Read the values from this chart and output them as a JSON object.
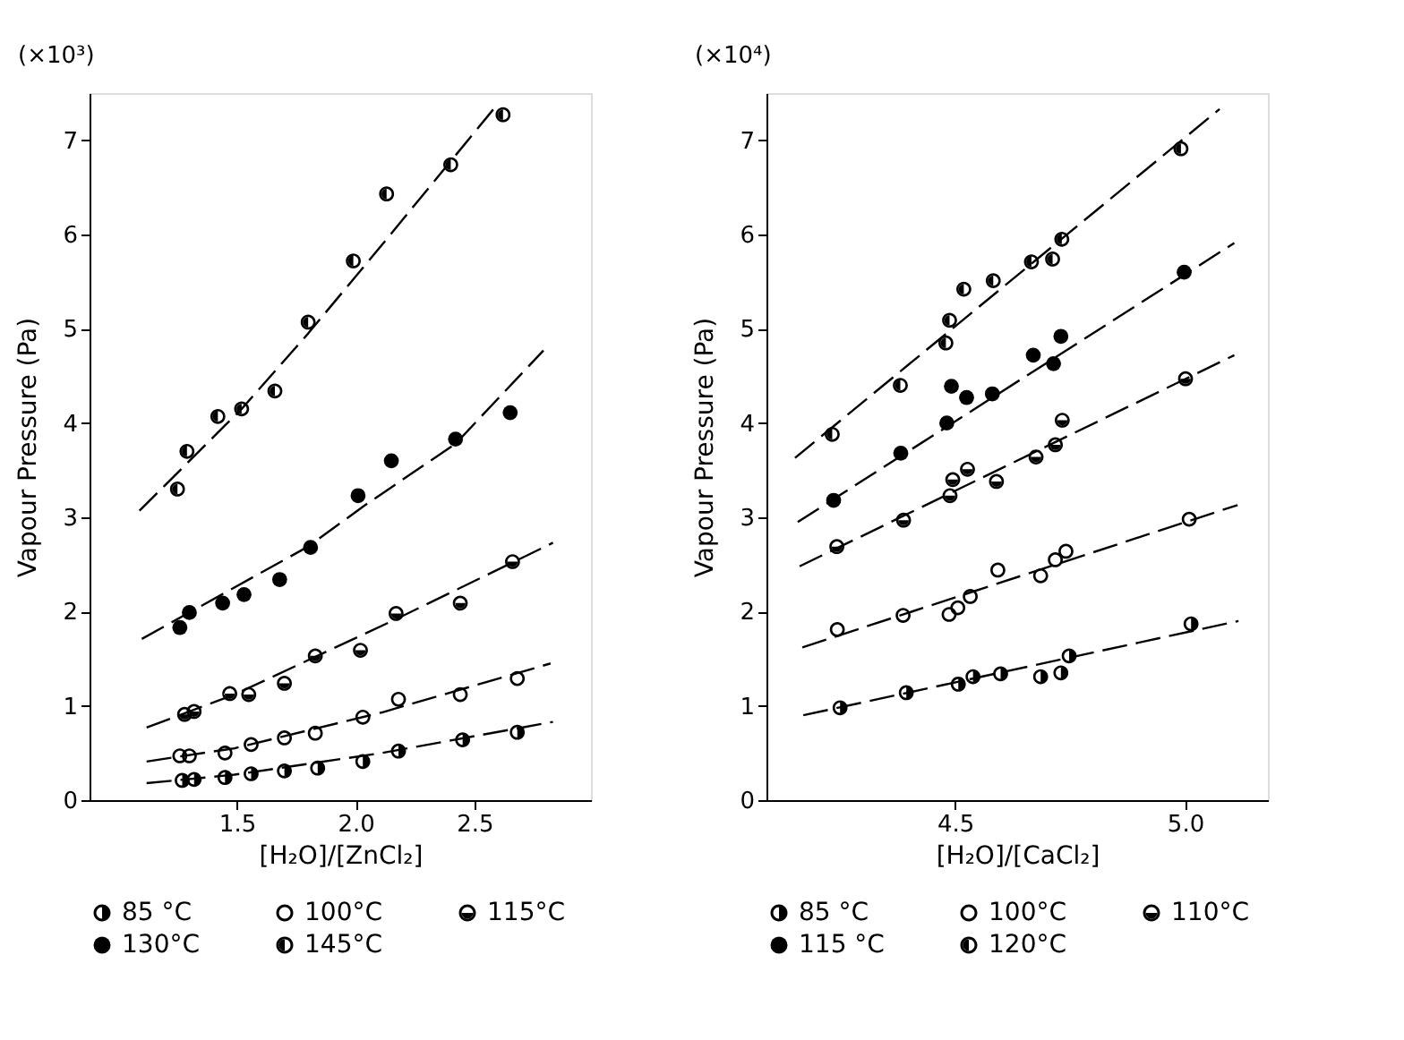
{
  "chart_data": [
    {
      "type": "scatter",
      "xlabel": "[H₂O]/[ZnCl₂]",
      "ylabel": "Vapour Pressure   (Pa)",
      "annotations": [
        "(×10³)"
      ],
      "xlim": [
        0.88,
        2.99
      ],
      "ylim": [
        0,
        7.5
      ],
      "xticks": [
        1.5,
        {
          "value": 2,
          "label": "2.0"
        },
        2.5
      ],
      "yticks": [
        0,
        1,
        2,
        3,
        4,
        5,
        6,
        7
      ],
      "grid": false,
      "legend": "bottom",
      "marker": "circle",
      "line_style": "dashed",
      "series": [
        {
          "name": "85 °C",
          "color": "#000000",
          "x": [
            1.27,
            1.32,
            1.45,
            1.56,
            1.7,
            1.84,
            2.03,
            2.18,
            2.45,
            2.68
          ],
          "values": [
            0.21,
            0.22,
            0.24,
            0.28,
            0.31,
            0.34,
            0.41,
            0.52,
            0.64,
            0.72
          ]
        },
        {
          "name": "100°C",
          "color": "#000000",
          "x": [
            1.26,
            1.3,
            1.45,
            1.56,
            1.7,
            1.83,
            2.03,
            2.18,
            2.44,
            2.68
          ],
          "values": [
            0.47,
            0.47,
            0.5,
            0.59,
            0.66,
            0.71,
            0.88,
            1.07,
            1.12,
            1.29
          ]
        },
        {
          "name": "115°C",
          "color": "#000000",
          "x": [
            1.28,
            1.32,
            1.47,
            1.55,
            1.7,
            1.83,
            2.02,
            2.17,
            2.44,
            2.66
          ],
          "values": [
            0.91,
            0.94,
            1.13,
            1.12,
            1.24,
            1.53,
            1.59,
            1.98,
            2.09,
            2.53
          ]
        },
        {
          "name": "130°C",
          "color": "#000000",
          "x": [
            1.26,
            1.3,
            1.44,
            1.53,
            1.68,
            1.81,
            2.01,
            2.15,
            2.42,
            2.65
          ],
          "values": [
            1.83,
            1.99,
            2.09,
            2.18,
            2.34,
            2.68,
            3.23,
            3.6,
            3.83,
            4.11
          ]
        },
        {
          "name": "145°C",
          "color": "#000000",
          "x": [
            1.25,
            1.29,
            1.42,
            1.52,
            1.66,
            1.8,
            1.99,
            2.13,
            2.4,
            2.62
          ],
          "values": [
            3.3,
            3.7,
            4.07,
            4.15,
            4.34,
            5.07,
            5.72,
            6.43,
            6.74,
            7.27
          ]
        },
        {
          "type": "line",
          "marker": "none",
          "color": "#000000",
          "x": [
            1.12,
            1.49,
            2.11,
            2.83
          ],
          "values": [
            0.18,
            0.27,
            0.5,
            0.83
          ]
        },
        {
          "type": "line",
          "marker": "none",
          "color": "#000000",
          "x": [
            1.12,
            1.49,
            2.11,
            2.82
          ],
          "values": [
            0.41,
            0.55,
            0.93,
            1.45
          ]
        },
        {
          "type": "line",
          "marker": "none",
          "color": "#000000",
          "x": [
            1.12,
            1.49,
            2.17,
            2.83
          ],
          "values": [
            0.77,
            1.12,
            1.92,
            2.73
          ]
        },
        {
          "type": "line",
          "marker": "none",
          "color": "#000000",
          "x": [
            1.1,
            1.8,
            2.04,
            2.42,
            2.79
          ],
          "values": [
            1.71,
            2.69,
            3.13,
            3.78,
            4.77
          ]
        },
        {
          "type": "line",
          "marker": "none",
          "color": "#000000",
          "x": [
            1.09,
            1.52,
            1.8,
            2.13,
            2.58
          ],
          "values": [
            3.07,
            4.15,
            4.95,
            5.95,
            7.33
          ]
        }
      ]
    },
    {
      "type": "scatter",
      "xlabel": "[H₂O]/[CaCl₂]",
      "ylabel": "Vapour Pressure   (Pa)",
      "annotations": [
        "(×10⁴)"
      ],
      "xlim": [
        4.09,
        5.18
      ],
      "ylim": [
        0,
        7.5
      ],
      "xticks": [
        4.5,
        {
          "value": 5,
          "label": "5.0"
        }
      ],
      "yticks": [
        0,
        1,
        2,
        3,
        4,
        5,
        6,
        7
      ],
      "grid": false,
      "legend": "bottom",
      "marker": "circle",
      "line_style": "dashed",
      "series": [
        {
          "name": "85 °C",
          "color": "#000000",
          "x": [
            4.25,
            4.394,
            4.507,
            4.539,
            4.599,
            4.686,
            4.73,
            4.748,
            5.013
          ],
          "values": [
            0.98,
            1.14,
            1.23,
            1.31,
            1.34,
            1.31,
            1.35,
            1.53,
            1.87
          ]
        },
        {
          "name": "100°C",
          "color": "#000000",
          "x": [
            4.244,
            4.387,
            4.487,
            4.506,
            4.533,
            4.593,
            4.686,
            4.718,
            4.741,
            5.009
          ],
          "values": [
            1.81,
            1.96,
            1.97,
            2.04,
            2.16,
            2.44,
            2.38,
            2.55,
            2.64,
            2.98
          ]
        },
        {
          "name": "110°C",
          "color": "#000000",
          "x": [
            4.243,
            4.388,
            4.489,
            4.495,
            4.527,
            4.59,
            4.676,
            4.718,
            4.733,
            5.001
          ],
          "values": [
            2.69,
            2.97,
            3.23,
            3.4,
            3.51,
            3.38,
            3.64,
            3.77,
            4.03,
            4.47
          ]
        },
        {
          "name": "115 °C",
          "color": "#000000",
          "x": [
            4.236,
            4.382,
            4.482,
            4.492,
            4.525,
            4.581,
            4.67,
            4.714,
            4.73,
            4.998
          ],
          "values": [
            3.18,
            3.68,
            4.0,
            4.39,
            4.27,
            4.31,
            4.72,
            4.63,
            4.92,
            5.6
          ]
        },
        {
          "name": "120°C",
          "color": "#000000",
          "x": [
            4.233,
            4.381,
            4.48,
            4.488,
            4.519,
            4.583,
            4.666,
            4.712,
            4.732,
            4.991
          ],
          "values": [
            3.88,
            4.4,
            4.85,
            5.09,
            5.42,
            5.51,
            5.71,
            5.74,
            5.95,
            6.91
          ]
        },
        {
          "type": "line",
          "marker": "none",
          "color": "#000000",
          "x": [
            4.17,
            5.116
          ],
          "values": [
            0.9,
            1.9
          ]
        },
        {
          "type": "line",
          "marker": "none",
          "color": "#000000",
          "x": [
            4.168,
            5.114
          ],
          "values": [
            1.62,
            3.13
          ]
        },
        {
          "type": "line",
          "marker": "none",
          "color": "#000000",
          "x": [
            4.162,
            5.107
          ],
          "values": [
            2.48,
            4.72
          ]
        },
        {
          "type": "line",
          "marker": "none",
          "color": "#000000",
          "x": [
            4.158,
            5.107
          ],
          "values": [
            2.95,
            5.91
          ]
        },
        {
          "type": "line",
          "marker": "none",
          "color": "#000000",
          "x": [
            4.152,
            5.075
          ],
          "values": [
            3.63,
            7.33
          ]
        }
      ]
    }
  ]
}
